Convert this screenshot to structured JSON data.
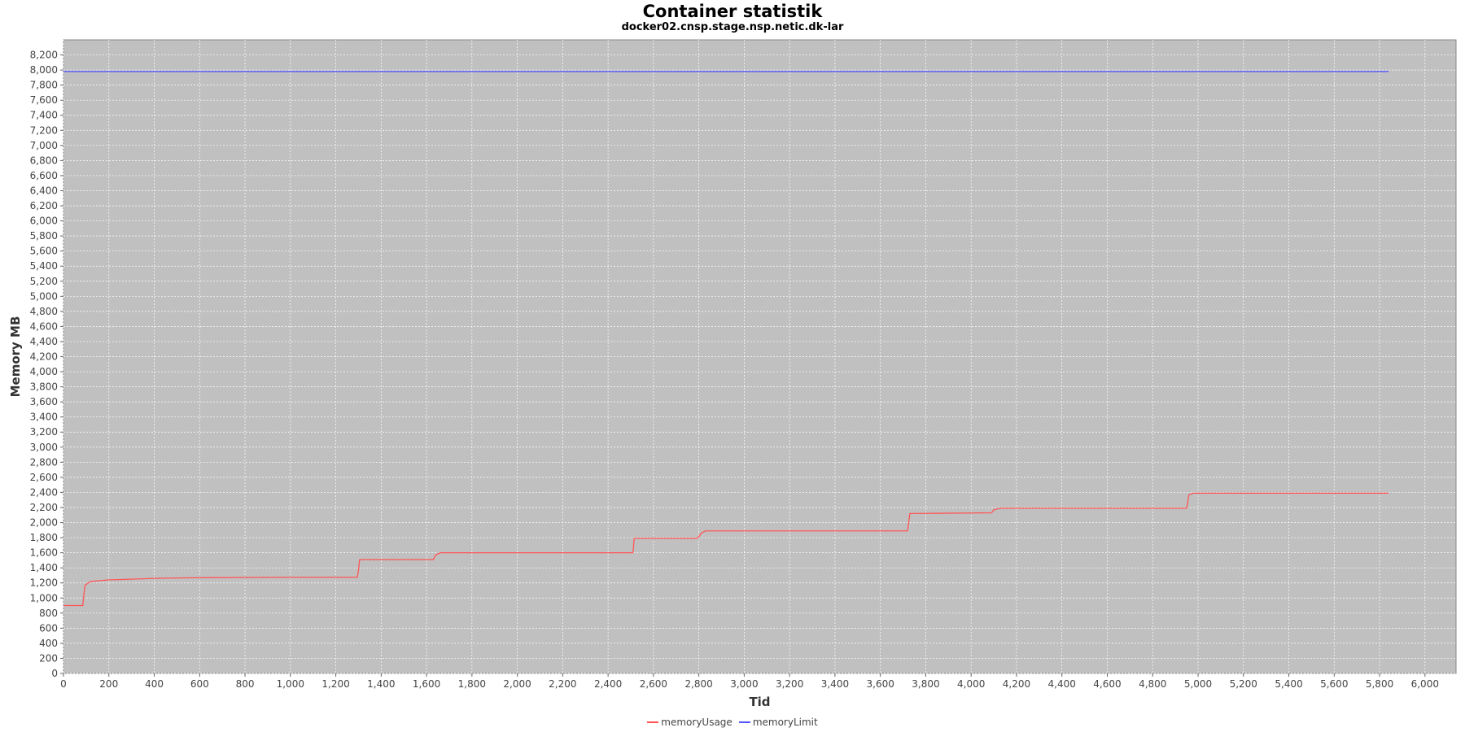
{
  "chart_data": {
    "type": "line",
    "title": "Container statistik",
    "subtitle": "docker02.cnsp.stage.nsp.netic.dk-lar",
    "xlabel": "Tid",
    "ylabel": "Memory MB",
    "xlim": [
      0,
      6137
    ],
    "ylim": [
      0,
      8400
    ],
    "xticks": [
      0,
      200,
      400,
      600,
      800,
      1000,
      1200,
      1400,
      1600,
      1800,
      2000,
      2200,
      2400,
      2600,
      2800,
      3000,
      3200,
      3400,
      3600,
      3800,
      4000,
      4200,
      4400,
      4600,
      4800,
      5000,
      5200,
      5400,
      5600,
      5800,
      6000
    ],
    "ytick_step": 200,
    "ytick_max": 8200,
    "grid": true,
    "legend_position": "bottom",
    "background": "#c0c0c0",
    "series": [
      {
        "name": "memoryUsage",
        "color": "#ff5555",
        "points": [
          [
            0,
            900
          ],
          [
            85,
            900
          ],
          [
            90,
            1050
          ],
          [
            95,
            1170
          ],
          [
            120,
            1220
          ],
          [
            200,
            1240
          ],
          [
            400,
            1260
          ],
          [
            600,
            1270
          ],
          [
            1000,
            1275
          ],
          [
            1295,
            1275
          ],
          [
            1300,
            1370
          ],
          [
            1305,
            1510
          ],
          [
            1630,
            1510
          ],
          [
            1640,
            1570
          ],
          [
            1660,
            1600
          ],
          [
            2510,
            1600
          ],
          [
            2515,
            1790
          ],
          [
            2790,
            1790
          ],
          [
            2800,
            1810
          ],
          [
            2810,
            1860
          ],
          [
            2830,
            1890
          ],
          [
            3720,
            1890
          ],
          [
            3730,
            2120
          ],
          [
            4090,
            2130
          ],
          [
            4100,
            2170
          ],
          [
            4130,
            2190
          ],
          [
            4950,
            2190
          ],
          [
            4960,
            2370
          ],
          [
            4980,
            2390
          ],
          [
            5840,
            2390
          ]
        ]
      },
      {
        "name": "memoryLimit",
        "color": "#5555ff",
        "points": [
          [
            0,
            7980
          ],
          [
            5840,
            7980
          ]
        ]
      }
    ]
  }
}
